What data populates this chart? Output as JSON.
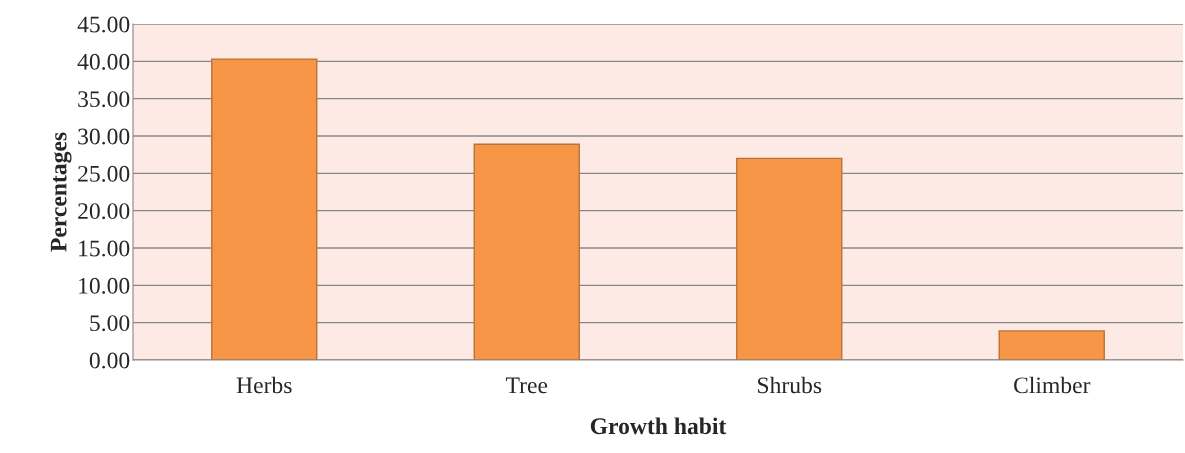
{
  "chart_data": {
    "type": "bar",
    "xlabel": "Growth habit",
    "ylabel": "Percentages",
    "categories": [
      "Herbs",
      "Tree",
      "Shrubs",
      "Climber"
    ],
    "values": [
      40.3,
      28.9,
      27.0,
      3.9
    ],
    "color": "#f79646",
    "ylim": [
      0,
      45
    ],
    "yticks": [
      {
        "value": 0,
        "label": "0.00"
      },
      {
        "value": 5,
        "label": "5.00"
      },
      {
        "value": 10,
        "label": "10.00"
      },
      {
        "value": 15,
        "label": "15.00"
      },
      {
        "value": 20,
        "label": "20.00"
      },
      {
        "value": 25,
        "label": "25.00"
      },
      {
        "value": 30,
        "label": "30.00"
      },
      {
        "value": 35,
        "label": "35.00"
      },
      {
        "value": 40,
        "label": "40.00"
      },
      {
        "value": 45,
        "label": "45.00"
      }
    ],
    "grid": "y"
  }
}
